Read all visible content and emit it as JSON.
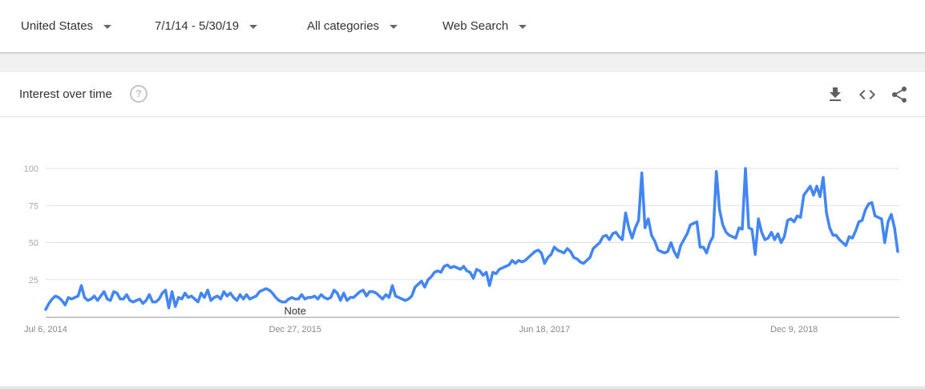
{
  "filters": {
    "region": "United States",
    "date_range": "7/1/14 - 5/30/19",
    "category": "All categories",
    "search_type": "Web Search"
  },
  "card": {
    "title": "Interest over time",
    "help_icon": "question-circle-icon",
    "actions": [
      "download-icon",
      "embed-code-icon",
      "share-icon"
    ]
  },
  "chart_data": {
    "type": "line",
    "title": "",
    "xlabel": "",
    "ylabel": "",
    "ylim": [
      0,
      100
    ],
    "grid": true,
    "yticks": [
      25,
      50,
      75,
      100
    ],
    "xticks": [
      {
        "label": "Jul 6, 2014",
        "index": 0
      },
      {
        "label": "Dec 27, 2015",
        "index": 77
      },
      {
        "label": "Jun 18, 2017",
        "index": 154
      },
      {
        "label": "Dec 9, 2018",
        "index": 231
      }
    ],
    "start_date": "2014-07-06",
    "interval": "weekly",
    "color": "#4285f4",
    "annotation": {
      "label": "Note",
      "index": 77
    },
    "series": [
      {
        "values": [
          5,
          9,
          12,
          14,
          13,
          11,
          8,
          13,
          12,
          13,
          14,
          21,
          13,
          11,
          12,
          14,
          11,
          14,
          17,
          12,
          11,
          17,
          16,
          12,
          12,
          15,
          11,
          10,
          11,
          12,
          9,
          11,
          15,
          10,
          10,
          12,
          16,
          18,
          6,
          17,
          7,
          13,
          12,
          16,
          13,
          14,
          12,
          10,
          16,
          13,
          18,
          11,
          13,
          14,
          12,
          17,
          14,
          16,
          13,
          11,
          15,
          12,
          15,
          12,
          13,
          14,
          17,
          18,
          19,
          18,
          16,
          13,
          11,
          10,
          10,
          12,
          13,
          12,
          12,
          15,
          12,
          13,
          13,
          14,
          12,
          15,
          13,
          12,
          13,
          18,
          16,
          11,
          16,
          11,
          13,
          13,
          15,
          17,
          18,
          14,
          17,
          17,
          16,
          14,
          12,
          15,
          13,
          21,
          14,
          13,
          12,
          11,
          12,
          14,
          20,
          22,
          24,
          20,
          25,
          27,
          30,
          31,
          30,
          34,
          35,
          33,
          34,
          33,
          32,
          34,
          31,
          30,
          26,
          32,
          31,
          28,
          30,
          21,
          30,
          29,
          32,
          33,
          34,
          35,
          38,
          36,
          38,
          37,
          38,
          40,
          42,
          44,
          45,
          43,
          36,
          40,
          42,
          47,
          45,
          44,
          43,
          46,
          44,
          40,
          39,
          37,
          36,
          38,
          40,
          46,
          48,
          50,
          54,
          55,
          52,
          56,
          57,
          54,
          52,
          70,
          60,
          53,
          60,
          65,
          97,
          60,
          66,
          55,
          51,
          45,
          44,
          43,
          44,
          50,
          44,
          40,
          48,
          52,
          56,
          62,
          63,
          64,
          47,
          47,
          43,
          50,
          54,
          98,
          72,
          62,
          57,
          55,
          54,
          53,
          60,
          59,
          100,
          60,
          59,
          42,
          66,
          57,
          52,
          53,
          57,
          52,
          56,
          50,
          54,
          65,
          66,
          64,
          68,
          67,
          82,
          85,
          88,
          82,
          88,
          81,
          94,
          70,
          60,
          55,
          55,
          52,
          50,
          48,
          54,
          53,
          58,
          64,
          65,
          72,
          76,
          77,
          68,
          67,
          66,
          50,
          64,
          69,
          60,
          44
        ]
      }
    ]
  }
}
